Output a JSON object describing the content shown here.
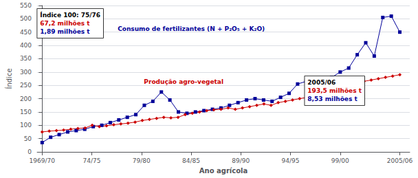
{
  "chart_data": {
    "type": "line",
    "xlabel": "Ano agrícola",
    "ylabel": "Índice",
    "xlim": [
      -0.5,
      37
    ],
    "xticks": [
      {
        "value": 0,
        "label": "1969/70"
      },
      {
        "value": 5,
        "label": "74/75"
      },
      {
        "value": 10,
        "label": "79/80"
      },
      {
        "value": 15,
        "label": "84/85"
      },
      {
        "value": 20,
        "label": "89/90"
      },
      {
        "value": 25,
        "label": "94/95"
      },
      {
        "value": 30,
        "label": "99/00"
      },
      {
        "value": 36,
        "label": "2005/06"
      }
    ],
    "ylim": [
      0,
      550
    ],
    "yticks": [
      0,
      50,
      100,
      150,
      200,
      250,
      300,
      350,
      400,
      450,
      500,
      550
    ],
    "grid": "y",
    "series": [
      {
        "color": "#000099",
        "marker": "square",
        "x": [
          0,
          0.857142857142857,
          1.714285714285714,
          2.571428571428571,
          3.428571428571429,
          4.285714285714286,
          5.142857142857143,
          6,
          6.857142857142857,
          7.714285714285714,
          8.571428571428571,
          9.428571428571429,
          10.285714285714286,
          11.142857142857142,
          12,
          12.857142857142858,
          13.714285714285714,
          14.571428571428571,
          15.428571428571429,
          16.285714285714285,
          17.142857142857142,
          18,
          18.857142857142858,
          19.714285714285715,
          20.571428571428573,
          21.428571428571427,
          22.285714285714285,
          23.142857142857142,
          24,
          24.857142857142858,
          25.714285714285715,
          26.571428571428573,
          27.428571428571427,
          28.285714285714285,
          29.142857142857142,
          30,
          30.857142857142858,
          31.714285714285715,
          32.57142857142857,
          33.42857142857143,
          34.285714285714285,
          35.142857142857146,
          36
        ],
        "values": [
          35,
          55,
          65,
          75,
          80,
          85,
          95,
          100,
          110,
          120,
          130,
          140,
          175,
          190,
          225,
          195,
          150,
          145,
          150,
          155,
          160,
          165,
          175,
          185,
          195,
          200,
          195,
          190,
          205,
          220,
          255,
          265,
          255,
          270,
          280,
          300,
          315,
          365,
          410,
          360,
          505,
          510,
          450
        ]
      },
      {
        "color": "#CC0000",
        "marker": "diamond",
        "x": [
          0,
          0.72,
          1.44,
          2.16,
          2.88,
          3.6,
          4.32,
          5.04,
          5.76,
          6.48,
          7.2,
          7.92,
          8.64,
          9.36,
          10.08,
          10.8,
          11.52,
          12.24,
          12.96,
          13.68,
          14.4,
          15.12,
          15.84,
          16.56,
          17.28,
          18,
          18.72,
          19.44,
          20.16,
          20.88,
          21.6,
          22.32,
          23.04,
          23.76,
          24.48,
          25.2,
          25.92,
          26.64,
          27.36,
          28.08,
          28.8,
          29.52,
          30.24,
          30.96,
          31.68,
          32.4,
          33.12,
          33.84,
          34.56,
          35.28,
          36
        ],
        "values": [
          75,
          78,
          80,
          82,
          85,
          88,
          90,
          100,
          95,
          98,
          102,
          105,
          108,
          112,
          118,
          122,
          126,
          130,
          128,
          130,
          140,
          145,
          150,
          155,
          158,
          160,
          165,
          160,
          165,
          170,
          175,
          180,
          175,
          185,
          190,
          195,
          200,
          205,
          210,
          215,
          225,
          235,
          250,
          245,
          255,
          265,
          270,
          275,
          280,
          285,
          290
        ]
      }
    ],
    "annotations": [
      {
        "lines": [
          {
            "text": "Índice 100: 75/76",
            "color": "black"
          },
          {
            "text": "67,2 milhões t",
            "color": "#CC0000"
          },
          {
            "text": "1,89 milhões t",
            "color": "#000099"
          }
        ]
      },
      {
        "lines": [
          {
            "text": "2005/06",
            "color": "black"
          },
          {
            "text": "193,5 milhões t",
            "color": "#CC0000"
          },
          {
            "text": "8,53 milhões t",
            "color": "#000099"
          }
        ]
      },
      {
        "text": "Consumo de fertilizantes (N + P₂O₅ + K₂O)",
        "color": "#000099"
      },
      {
        "text": "Produção agro-vegetal",
        "color": "#CC0000"
      }
    ]
  }
}
